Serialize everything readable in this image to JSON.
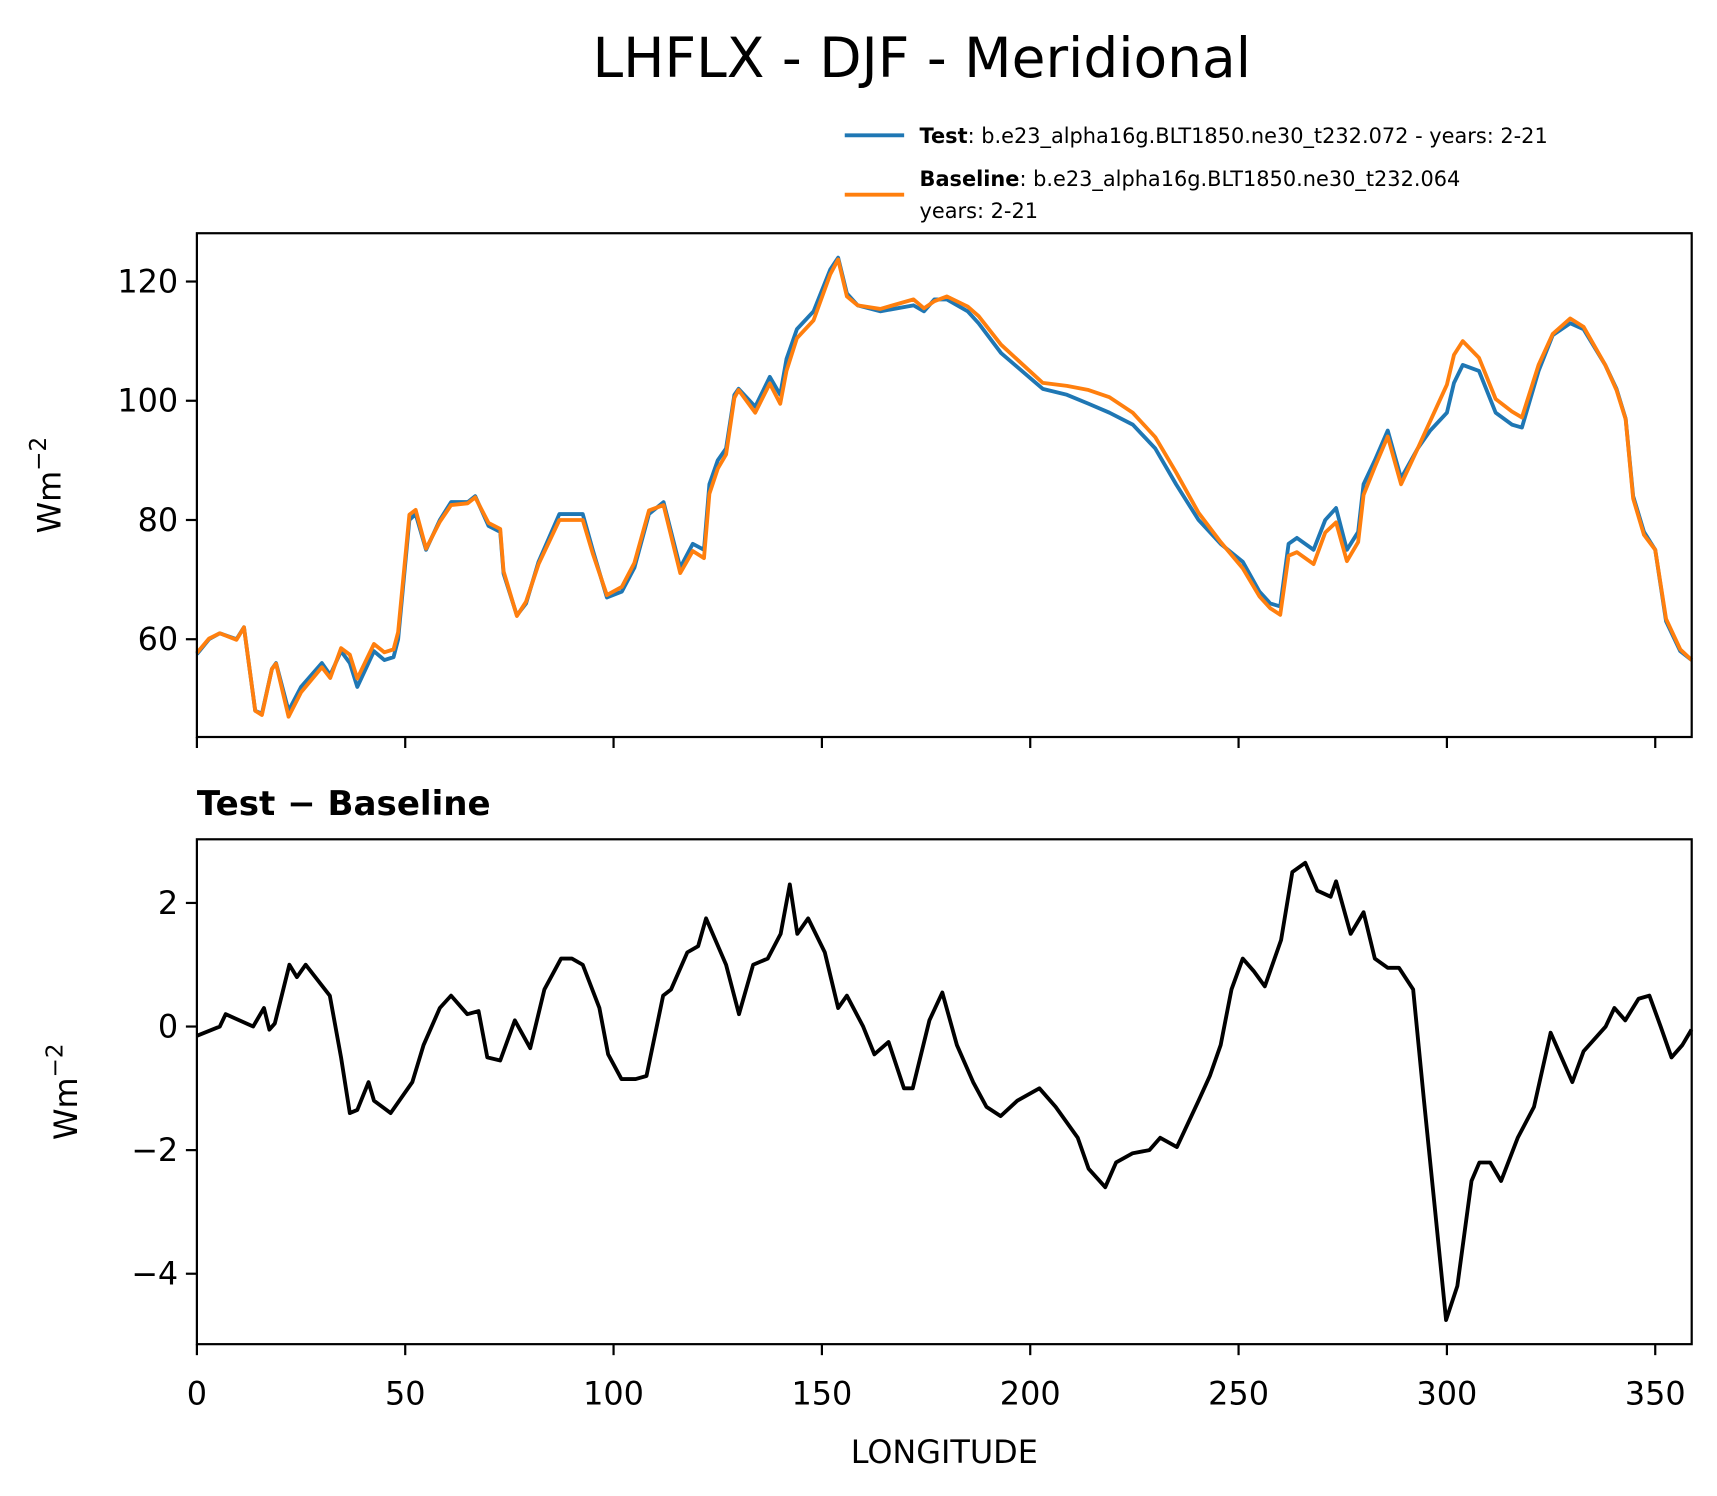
{
  "title": "LHFLX - DJF - Meridional",
  "chart_data": [
    {
      "type": "line",
      "ylabel": "Wm",
      "ylabel_sup": "−2",
      "xlim": [
        0,
        358.75
      ],
      "xticks": [
        0,
        50,
        100,
        150,
        200,
        250,
        300,
        350
      ],
      "ylim": [
        43.6,
        128.1
      ],
      "yticks": [
        60,
        80,
        100,
        120
      ],
      "x": [
        0,
        2.9,
        5.5,
        9.5,
        11.3,
        14,
        15.6,
        18,
        19,
        22,
        25,
        30,
        32,
        34.6,
        36.7,
        38.5,
        42.5,
        45,
        47.2,
        48.3,
        51,
        52.5,
        55,
        58.3,
        61,
        65,
        66.8,
        70,
        72.8,
        73.6,
        76.8,
        79,
        82,
        87,
        92.6,
        95,
        98.4,
        102,
        105,
        108.5,
        112,
        116,
        119,
        121.7,
        123,
        125,
        127,
        129,
        130,
        134,
        137.5,
        140,
        141.5,
        144,
        148,
        152,
        153.9,
        156,
        158.6,
        164,
        172,
        174.5,
        177,
        180,
        185,
        187.6,
        193,
        198,
        203,
        208.8,
        214,
        219,
        224.6,
        230,
        235,
        240.4,
        245.7,
        251,
        255,
        257.6,
        260,
        262,
        264,
        268,
        270.8,
        273.4,
        276,
        278.7,
        280,
        282.7,
        285.8,
        289,
        293,
        296,
        300,
        301.7,
        303.8,
        307.7,
        311.7,
        315.6,
        318,
        322,
        325.4,
        329.6,
        332.8,
        338,
        340.7,
        342.9,
        344.7,
        347.3,
        350,
        352.6,
        356,
        358.75
      ],
      "series": [
        {
          "name": "Test",
          "label": ": b.e23_alpha16g.BLT1850.ne30_t232.072 - years: 2-21",
          "color": "#1f77b4",
          "values": [
            57.5,
            60,
            61,
            60,
            62,
            48,
            47.5,
            55,
            56,
            48,
            52,
            56,
            54,
            58,
            56,
            52,
            58,
            56.5,
            57,
            60,
            80,
            81,
            75,
            80,
            83,
            83,
            84,
            79,
            78,
            71,
            64,
            66,
            73,
            81,
            81,
            75,
            67,
            68,
            72,
            81,
            83,
            72,
            76,
            75,
            86,
            90,
            92,
            101,
            102,
            99,
            104,
            101,
            107,
            112,
            115,
            122,
            124,
            118,
            116,
            115,
            116,
            115,
            117,
            117,
            115,
            113,
            108,
            105,
            102,
            101,
            99.5,
            98,
            96,
            92,
            86,
            80,
            76,
            73,
            68,
            66,
            65.5,
            76,
            77,
            75,
            80,
            82,
            75,
            78,
            86,
            90,
            95,
            87,
            92,
            95,
            98,
            103,
            106,
            105,
            98,
            96,
            95.5,
            105,
            111,
            113,
            112,
            106,
            102,
            97,
            84,
            78,
            75,
            63,
            58,
            56.5
          ]
        },
        {
          "name": "Baseline",
          "label_lines": [
            ": b.e23_alpha16g.BLT1850.ne30_t232.064",
            "years: 2-21"
          ],
          "color": "#ff7f0e",
          "values": [
            57.7,
            60.1,
            61,
            59.9,
            62,
            48,
            47.3,
            55,
            55.9,
            47,
            51.1,
            55.3,
            53.5,
            58.5,
            57.4,
            53.4,
            59.2,
            57.8,
            58.3,
            61.2,
            80.9,
            81.7,
            75.2,
            79.7,
            82.5,
            82.8,
            83.8,
            79.5,
            78.5,
            71.4,
            63.9,
            66.3,
            72.6,
            80,
            80,
            74.4,
            67.4,
            68.8,
            72.8,
            81.6,
            82.5,
            71.1,
            74.8,
            73.6,
            84.4,
            88.6,
            91,
            100.5,
            101.8,
            98,
            102.9,
            99.5,
            105,
            110.5,
            113.5,
            121.2,
            123.7,
            117.5,
            116,
            115.4,
            117,
            115.5,
            116.7,
            117.5,
            115.8,
            114.2,
            109.4,
            106.2,
            103,
            102.5,
            101.8,
            100.6,
            98,
            93.9,
            88,
            81.2,
            76.3,
            71.9,
            67.2,
            65.2,
            64.1,
            74,
            74.6,
            72.6,
            77.9,
            79.6,
            73.1,
            76.3,
            84.2,
            88.9,
            94,
            86,
            92,
            96.6,
            102.7,
            107.7,
            110,
            107.2,
            100.3,
            98.2,
            97.2,
            106,
            111.2,
            113.8,
            112.4,
            106,
            101.8,
            96.9,
            83.6,
            77.5,
            75,
            63.4,
            58.3,
            56.5
          ]
        }
      ]
    },
    {
      "type": "line",
      "title": "Test − Baseline",
      "ylabel": "Wm",
      "ylabel_sup": "−2",
      "xlabel": "LONGITUDE",
      "xlim": [
        0,
        358.75
      ],
      "xticks": [
        0,
        50,
        100,
        150,
        200,
        250,
        300,
        350
      ],
      "ylim": [
        -5.14,
        3.03
      ],
      "yticks": [
        {
          "value": -4,
          "label": "−4"
        },
        {
          "value": -2,
          "label": "−2"
        },
        0,
        2
      ],
      "x": [
        0,
        5.5,
        6.9,
        13.5,
        16.1,
        17.4,
        18.7,
        22.2,
        24,
        26.1,
        31.9,
        34.6,
        36.7,
        38.5,
        41.2,
        42.5,
        46.5,
        51.7,
        54.4,
        58.3,
        61,
        64.9,
        67.6,
        69.7,
        72.8,
        76.3,
        80,
        83.4,
        87.4,
        90,
        92.6,
        96.6,
        98.7,
        101.9,
        105.3,
        107.9,
        111.9,
        113.8,
        117.7,
        120.3,
        122.2,
        127,
        130.1,
        133.5,
        137,
        140.1,
        142.3,
        144.1,
        146.7,
        150.7,
        153.9,
        156,
        159.9,
        162.6,
        166,
        169.7,
        171.8,
        175.8,
        178.9,
        182.4,
        186.3,
        189.5,
        192.9,
        196.9,
        202.2,
        206.1,
        211.4,
        214,
        218,
        220.6,
        224.6,
        228.6,
        231.2,
        235.2,
        240.4,
        243.1,
        245.7,
        248.3,
        251,
        253.6,
        256.3,
        260.2,
        262.9,
        266,
        268.9,
        272.1,
        273.4,
        276.9,
        280,
        282.7,
        285.8,
        288.5,
        291.9,
        294.5,
        297.2,
        299.8,
        302.5,
        305.9,
        307.8,
        310.4,
        313,
        317,
        320.9,
        324.9,
        327.5,
        330.1,
        332.8,
        338.1,
        340.2,
        342.8,
        346,
        348.6,
        351.3,
        353.9,
        356.5,
        358.7
      ],
      "series": [
        {
          "name": "Test − Baseline",
          "color": "#000000",
          "values": [
            -0.15,
            0,
            0.2,
            0,
            0.3,
            -0.05,
            0.05,
            1,
            0.8,
            1,
            0.5,
            -0.5,
            -1.4,
            -1.35,
            -0.9,
            -1.2,
            -1.4,
            -0.9,
            -0.3,
            0.3,
            0.5,
            0.2,
            0.25,
            -0.5,
            -0.55,
            0.1,
            -0.35,
            0.6,
            1.1,
            1.1,
            1,
            0.3,
            -0.45,
            -0.85,
            -0.85,
            -0.8,
            0.5,
            0.6,
            1.2,
            1.3,
            1.75,
            1,
            0.2,
            1,
            1.1,
            1.5,
            2.3,
            1.5,
            1.75,
            1.2,
            0.3,
            0.5,
            0,
            -0.45,
            -0.25,
            -1,
            -1,
            0.1,
            0.55,
            -0.3,
            -0.9,
            -1.3,
            -1.45,
            -1.2,
            -1,
            -1.3,
            -1.8,
            -2.3,
            -2.6,
            -2.2,
            -2.05,
            -2,
            -1.8,
            -1.95,
            -1.2,
            -0.8,
            -0.3,
            0.6,
            1.1,
            0.9,
            0.65,
            1.4,
            2.5,
            2.65,
            2.2,
            2.1,
            2.35,
            1.5,
            1.85,
            1.1,
            0.95,
            0.95,
            0.6,
            -1.2,
            -3,
            -4.75,
            -4.2,
            -2.5,
            -2.2,
            -2.2,
            -2.5,
            -1.8,
            -1.3,
            -0.1,
            -0.5,
            -0.9,
            -0.4,
            0,
            0.3,
            0.1,
            0.45,
            0.5,
            0,
            -0.5,
            -0.3,
            -0.05
          ]
        }
      ]
    }
  ]
}
